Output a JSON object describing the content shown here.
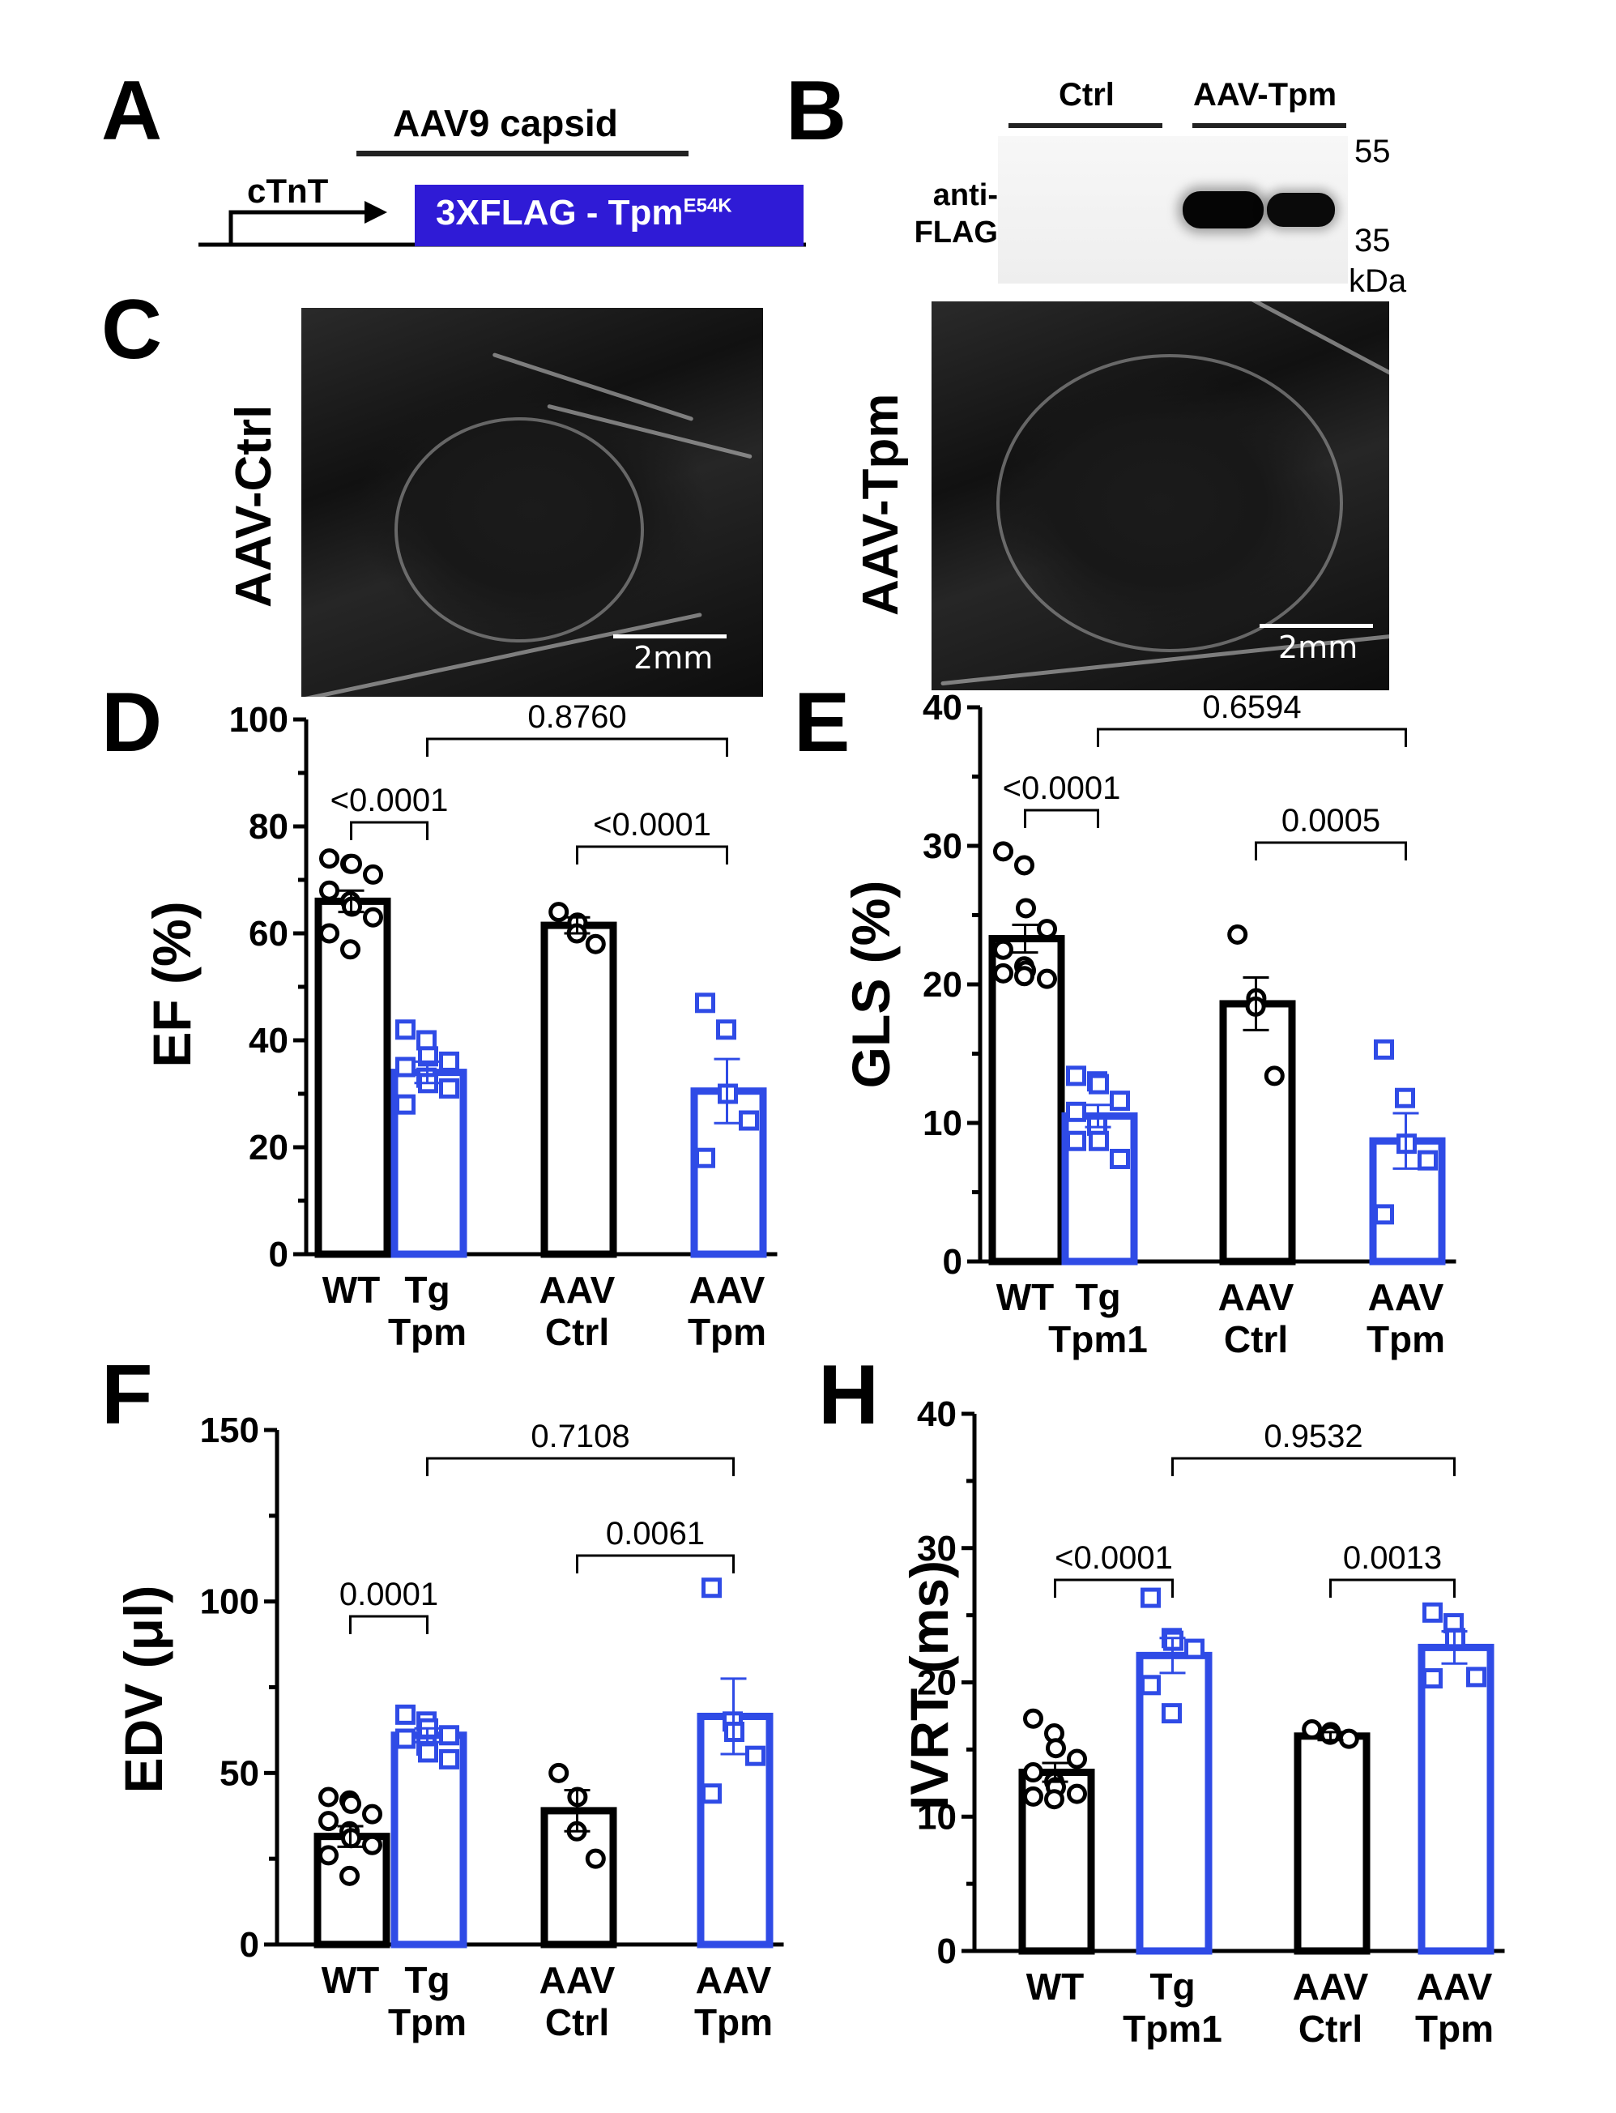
{
  "panels": {
    "a": "A",
    "b": "B",
    "c": "C",
    "d": "D",
    "e": "E",
    "f": "F",
    "h": "H"
  },
  "construct": {
    "capsid": "AAV9 capsid",
    "promoter": "cTnT",
    "insert": "3XFLAG - Tpm",
    "insert_sup": "E54K",
    "insert_color": "#2f1bd6"
  },
  "blot": {
    "group1": "Ctrl",
    "group2": "AAV-Tpm",
    "antibody_line1": "anti-",
    "antibody_line2": "FLAG",
    "marker_top": "55",
    "marker_bottom": "35",
    "unit": "kDa"
  },
  "echo": {
    "left_label": "AAV-Ctrl",
    "right_label": "AAV-Tpm",
    "scale": "2mm"
  },
  "colors": {
    "black": "#000000",
    "blue": "#2f4be6"
  },
  "chart_data": [
    {
      "id": "D",
      "type": "bar",
      "ylabel": "EF (%)",
      "ylim": [
        0,
        100
      ],
      "yticks": [
        0,
        20,
        40,
        60,
        80,
        100
      ],
      "categories": [
        [
          "WT"
        ],
        [
          "Tg",
          "Tpm"
        ],
        [
          "AAV",
          "Ctrl"
        ],
        [
          "AAV",
          "Tpm"
        ]
      ],
      "values": [
        66,
        34,
        61.5,
        30.5
      ],
      "sem": [
        2,
        2,
        1.5,
        6
      ],
      "points": [
        [
          74,
          73,
          73,
          71,
          68,
          66,
          65,
          63,
          60,
          57
        ],
        [
          42,
          40,
          37,
          36,
          35,
          33,
          32,
          31,
          28
        ],
        [
          64,
          62,
          60,
          58
        ],
        [
          47,
          42,
          30,
          25,
          18
        ]
      ],
      "brackets": [
        {
          "from": 0,
          "to": 1,
          "label": "<0.0001"
        },
        {
          "from": 2,
          "to": 3,
          "label": "<0.0001"
        },
        {
          "from": 1,
          "to": 3,
          "label": "0.8760"
        }
      ]
    },
    {
      "id": "E",
      "type": "bar",
      "ylabel": "GLS  (%)",
      "ylim": [
        0,
        40
      ],
      "yticks": [
        0,
        10,
        20,
        30,
        40
      ],
      "categories": [
        [
          "WT"
        ],
        [
          "Tg",
          "Tpm1"
        ],
        [
          "AAV",
          "Ctrl"
        ],
        [
          "AAV",
          "Tpm"
        ]
      ],
      "values": [
        23.3,
        10.5,
        18.6,
        8.7
      ],
      "sem": [
        1,
        0.8,
        1.9,
        2
      ],
      "points": [
        [
          29.6,
          28.6,
          25.5,
          24,
          22.5,
          21.3,
          21,
          20.4,
          20.8,
          20.6
        ],
        [
          13.4,
          13,
          12.8,
          11.6,
          10.8,
          9.8,
          8.7,
          7.4,
          8.7
        ],
        [
          23.6,
          19,
          18.4,
          13.4
        ],
        [
          15.3,
          11.8,
          8.5,
          7.3,
          3.4
        ]
      ],
      "brackets": [
        {
          "from": 0,
          "to": 1,
          "label": "<0.0001"
        },
        {
          "from": 2,
          "to": 3,
          "label": "0.0005"
        },
        {
          "from": 1,
          "to": 3,
          "label": "0.6594"
        }
      ]
    },
    {
      "id": "F",
      "type": "bar",
      "ylabel": "EDV (μl)",
      "ylim": [
        0,
        150
      ],
      "yticks": [
        0,
        50,
        100,
        150
      ],
      "categories": [
        [
          "WT"
        ],
        [
          "Tg",
          "Tpm"
        ],
        [
          "AAV",
          "Ctrl"
        ],
        [
          "AAV",
          "Tpm"
        ]
      ],
      "values": [
        31.5,
        61,
        39,
        66.5
      ],
      "sem": [
        3,
        2,
        6,
        11
      ],
      "points": [
        [
          43,
          42,
          41,
          38,
          36,
          33,
          31,
          29,
          26,
          20
        ],
        [
          67,
          65,
          63,
          61,
          60,
          58,
          56,
          54
        ],
        [
          50,
          43,
          33,
          25
        ],
        [
          104,
          65,
          62,
          55,
          44
        ]
      ],
      "brackets": [
        {
          "from": 0,
          "to": 1,
          "label": "0.0001"
        },
        {
          "from": 2,
          "to": 3,
          "label": "0.0061"
        },
        {
          "from": 1,
          "to": 3,
          "label": "0.7108"
        }
      ]
    },
    {
      "id": "H",
      "type": "bar",
      "ylabel": "IVRT (ms)",
      "ylim": [
        0,
        40
      ],
      "yticks": [
        0,
        10,
        20,
        30,
        40
      ],
      "categories": [
        [
          "WT"
        ],
        [
          "Tg",
          "Tpm1"
        ],
        [
          "AAV",
          "Ctrl"
        ],
        [
          "AAV",
          "Tpm"
        ]
      ],
      "values": [
        13.3,
        22,
        16,
        22.6
      ],
      "sem": [
        0.7,
        1.3,
        0.3,
        1.2
      ],
      "points": [
        [
          17.3,
          16.2,
          15.1,
          14.3,
          13.3,
          12.6,
          12.2,
          11.7,
          11.5,
          11.3
        ],
        [
          26.3,
          23.3,
          23.1,
          22.5,
          19.8,
          17.7
        ],
        [
          16.5,
          16.3,
          16.1,
          15.8
        ],
        [
          25.2,
          24.4,
          23.3,
          20.4,
          20.3
        ]
      ],
      "brackets": [
        {
          "from": 0,
          "to": 1,
          "label": "<0.0001"
        },
        {
          "from": 2,
          "to": 3,
          "label": "0.0013"
        },
        {
          "from": 1,
          "to": 3,
          "label": "0.9532"
        }
      ]
    }
  ]
}
